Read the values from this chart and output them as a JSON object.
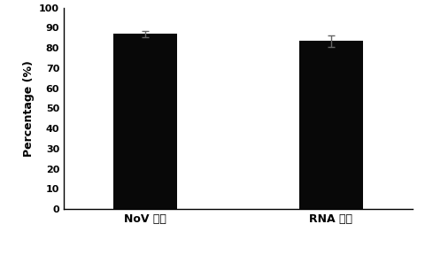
{
  "categories": [
    "NoV 농축",
    "RNA 회수"
  ],
  "values": [
    87.0,
    83.5
  ],
  "errors": [
    1.5,
    2.8
  ],
  "bar_color": "#080808",
  "bar_width": 0.55,
  "bar_positions": [
    1,
    2.6
  ],
  "ylabel": "Percentage (%)",
  "ylim": [
    0,
    100
  ],
  "yticks": [
    0,
    10,
    20,
    30,
    40,
    50,
    60,
    70,
    80,
    90,
    100
  ],
  "background_color": "#ffffff",
  "error_color": "#666666",
  "capsize": 3,
  "ylabel_fontsize": 9,
  "tick_fontsize": 8,
  "xlabel_fontsize": 9,
  "spine_linewidth": 1.0
}
